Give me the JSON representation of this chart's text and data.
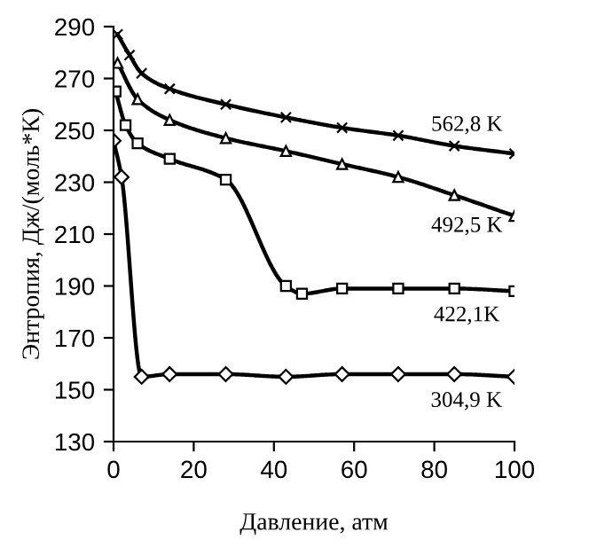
{
  "chart_data": {
    "type": "line",
    "xlabel": "Давление, атм",
    "ylabel": "Энтропия, Дж/(моль*К)",
    "xlim": [
      0,
      100
    ],
    "xticks": [
      0,
      20,
      40,
      60,
      80,
      100
    ],
    "ylim": [
      130,
      290
    ],
    "yticks": [
      130,
      150,
      170,
      190,
      210,
      230,
      250,
      270,
      290
    ],
    "grid": false,
    "legend": false,
    "line_style": "solid",
    "series": [
      {
        "name": "562,8 K",
        "color": "#000000",
        "marker": "cross",
        "x": [
          1,
          4,
          7,
          14,
          28,
          43,
          57,
          71,
          85,
          100
        ],
        "values": [
          287,
          279,
          272,
          266,
          260,
          255,
          251,
          248,
          244,
          241
        ]
      },
      {
        "name": "492,5 K",
        "color": "#000000",
        "marker": "triangle",
        "x": [
          1,
          6,
          14,
          28,
          43,
          57,
          71,
          85,
          100
        ],
        "values": [
          276,
          262,
          254,
          247,
          242,
          237,
          232,
          225,
          217
        ]
      },
      {
        "name": "422,1K",
        "color": "#000000",
        "marker": "square",
        "x": [
          0.5,
          3,
          6,
          14,
          28,
          43,
          47,
          57,
          71,
          85,
          100
        ],
        "values": [
          265,
          252,
          245,
          239,
          231,
          190,
          187,
          189,
          189,
          189,
          188
        ]
      },
      {
        "name": "304,9 K",
        "color": "#000000",
        "marker": "diamond",
        "x": [
          0,
          2,
          7,
          14,
          28,
          43,
          57,
          71,
          85,
          100
        ],
        "values": [
          246,
          232,
          155,
          156,
          156,
          155,
          156,
          156,
          156,
          155
        ]
      }
    ]
  }
}
